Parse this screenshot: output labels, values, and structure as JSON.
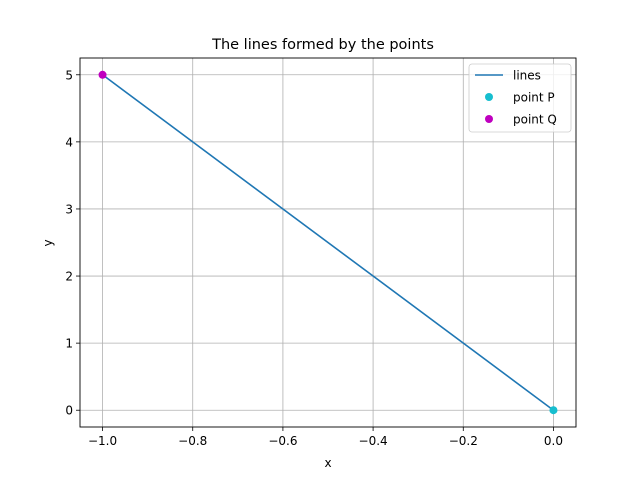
{
  "chart_data": {
    "type": "line",
    "title": "The lines formed by the points",
    "xlabel": "x",
    "ylabel": "y",
    "xlim": [
      -1.05,
      0.05
    ],
    "ylim": [
      -0.25,
      5.25
    ],
    "grid": true,
    "legend_position": "top-right",
    "xticks": [
      -1.0,
      -0.8,
      -0.6,
      -0.4,
      -0.2,
      0.0
    ],
    "xtick_labels": [
      "−1.0",
      "−0.8",
      "−0.6",
      "−0.4",
      "−0.2",
      "0.0"
    ],
    "yticks": [
      0,
      1,
      2,
      3,
      4,
      5
    ],
    "ytick_labels": [
      "0",
      "1",
      "2",
      "3",
      "4",
      "5"
    ],
    "series": [
      {
        "name": "lines",
        "kind": "line",
        "color": "#1f77b4",
        "x": [
          0,
          -1
        ],
        "y": [
          0,
          5
        ]
      },
      {
        "name": "point P",
        "kind": "point",
        "color": "#17becf",
        "x": [
          0
        ],
        "y": [
          0
        ]
      },
      {
        "name": "point Q",
        "kind": "point",
        "color": "#bf00bf",
        "x": [
          -1
        ],
        "y": [
          5
        ]
      }
    ]
  }
}
